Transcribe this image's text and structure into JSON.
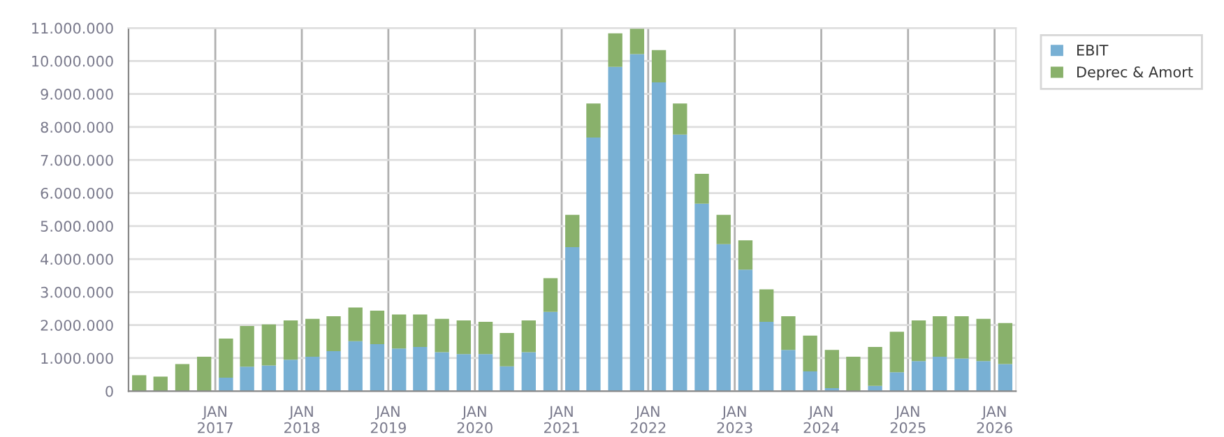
{
  "chart_data": {
    "type": "bar",
    "stacked": true,
    "x": [
      "2016-02-15",
      "2016-05-15",
      "2016-08-15",
      "2016-11-15",
      "2017-02-15",
      "2017-05-15",
      "2017-08-15",
      "2017-11-15",
      "2018-02-15",
      "2018-05-15",
      "2018-08-15",
      "2018-11-15",
      "2019-02-15",
      "2019-05-15",
      "2019-08-15",
      "2019-11-15",
      "2020-02-15",
      "2020-05-15",
      "2020-08-15",
      "2020-11-15",
      "2021-02-15",
      "2021-05-15",
      "2021-08-15",
      "2021-11-15",
      "2022-02-15",
      "2022-05-15",
      "2022-08-15",
      "2022-11-15",
      "2023-02-15",
      "2023-05-15",
      "2023-08-15",
      "2023-11-15",
      "2024-02-15",
      "2024-05-15",
      "2024-08-15",
      "2024-11-15",
      "2025-02-15",
      "2025-05-15",
      "2025-08-15",
      "2025-11-15",
      "2026-02-15"
    ],
    "series": [
      {
        "name": "EBIT",
        "color": "#78b0d4",
        "values": [
          0,
          0,
          0,
          0,
          410000,
          740000,
          780000,
          950000,
          1040000,
          1210000,
          1510000,
          1420000,
          1290000,
          1340000,
          1180000,
          1120000,
          1120000,
          750000,
          1180000,
          2400000,
          4360000,
          7680000,
          9820000,
          10210000,
          9350000,
          7770000,
          5680000,
          4450000,
          3680000,
          2100000,
          1250000,
          600000,
          90000,
          0,
          160000,
          570000,
          910000,
          1040000,
          990000,
          910000,
          820000
        ]
      },
      {
        "name": "Deprec & Amort",
        "color": "#89b16b",
        "values": [
          480000,
          440000,
          820000,
          1040000,
          1180000,
          1230000,
          1240000,
          1190000,
          1150000,
          1060000,
          1020000,
          1020000,
          1030000,
          980000,
          1010000,
          1020000,
          980000,
          1010000,
          960000,
          1020000,
          980000,
          1030000,
          1020000,
          790000,
          980000,
          940000,
          900000,
          890000,
          890000,
          980000,
          1020000,
          1080000,
          1160000,
          1040000,
          1180000,
          1230000,
          1230000,
          1230000,
          1280000,
          1280000,
          1240000
        ]
      }
    ],
    "xlim": [
      "2016-01-01",
      "2026-04-01"
    ],
    "xticks": [
      {
        "value": "2017-01-01",
        "label": "JAN\n2017"
      },
      {
        "value": "2018-01-01",
        "label": "JAN\n2018"
      },
      {
        "value": "2019-01-01",
        "label": "JAN\n2019"
      },
      {
        "value": "2020-01-01",
        "label": "JAN\n2020"
      },
      {
        "value": "2021-01-01",
        "label": "JAN\n2021"
      },
      {
        "value": "2022-01-01",
        "label": "JAN\n2022"
      },
      {
        "value": "2023-01-01",
        "label": "JAN\n2023"
      },
      {
        "value": "2024-01-01",
        "label": "JAN\n2024"
      },
      {
        "value": "2025-01-01",
        "label": "JAN\n2025"
      },
      {
        "value": "2026-01-01",
        "label": "JAN\n2026"
      }
    ],
    "ylim": [
      0,
      11000000
    ],
    "yticks": [
      0,
      {
        "value": 1000000,
        "label": "1.000.000"
      },
      {
        "value": 2000000,
        "label": "2.000.000"
      },
      {
        "value": 3000000,
        "label": "3.000.000"
      },
      {
        "value": 4000000,
        "label": "4.000.000"
      },
      {
        "value": 5000000,
        "label": "5.000.000"
      },
      {
        "value": 6000000,
        "label": "6.000.000"
      },
      {
        "value": 7000000,
        "label": "7.000.000"
      },
      {
        "value": 8000000,
        "label": "8.000.000"
      },
      {
        "value": 9000000,
        "label": "9.000.000"
      },
      {
        "value": 10000000,
        "label": "10.000.000"
      },
      {
        "value": 11000000,
        "label": "11.000.000"
      }
    ],
    "grid": true,
    "legend": "top right"
  }
}
